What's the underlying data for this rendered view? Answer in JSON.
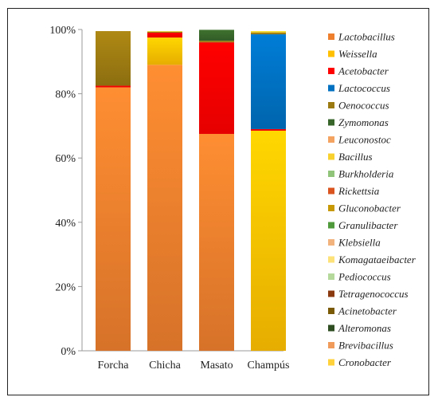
{
  "chart_data": {
    "type": "bar",
    "stacked": true,
    "categories": [
      "Forcha",
      "Chicha",
      "Masato",
      "Champús"
    ],
    "yticks": [
      "0%",
      "20%",
      "40%",
      "60%",
      "80%",
      "100%"
    ],
    "ylim": [
      0,
      100
    ],
    "grid": false,
    "legend_position": "right",
    "series": [
      {
        "name": "Lactobacillus",
        "color": "#ee7f2d",
        "values": [
          82,
          89,
          67.5,
          0
        ]
      },
      {
        "name": "Weissella",
        "color": "#ffc000",
        "values": [
          0,
          8.5,
          0,
          68.5
        ]
      },
      {
        "name": "Acetobacter",
        "color": "#ff0000",
        "values": [
          0.5,
          1.5,
          28.5,
          0.5
        ]
      },
      {
        "name": "Lactococcus",
        "color": "#0070c0",
        "values": [
          0,
          0,
          0,
          29.5
        ]
      },
      {
        "name": "Oenococcus",
        "color": "#9c7a12",
        "values": [
          17,
          0.3,
          0.5,
          0.5
        ]
      },
      {
        "name": "Zymomonas",
        "color": "#38662a",
        "values": [
          0,
          0,
          3.4,
          0
        ]
      },
      {
        "name": "Leuconostoc",
        "color": "#f4a460",
        "values": [
          0,
          0,
          0,
          0
        ]
      },
      {
        "name": "Bacillus",
        "color": "#f8d12e",
        "values": [
          0,
          0.2,
          0,
          0.5
        ]
      },
      {
        "name": "Burkholderia",
        "color": "#8fc47a",
        "values": [
          0,
          0,
          0,
          0
        ]
      },
      {
        "name": "Rickettsia",
        "color": "#d9541e",
        "values": [
          0,
          0,
          0,
          0
        ]
      },
      {
        "name": "Gluconobacter",
        "color": "#c79a05",
        "values": [
          0,
          0,
          0,
          0
        ]
      },
      {
        "name": "Granulibacter",
        "color": "#4f9a3a",
        "values": [
          0,
          0,
          0,
          0
        ]
      },
      {
        "name": "Klebsiella",
        "color": "#f2b47c",
        "values": [
          0,
          0,
          0,
          0
        ]
      },
      {
        "name": "Komagataeibacter",
        "color": "#fde27a",
        "values": [
          0,
          0,
          0,
          0
        ]
      },
      {
        "name": "Pediococcus",
        "color": "#b5d99b",
        "values": [
          0,
          0,
          0,
          0
        ]
      },
      {
        "name": "Tetragenococcus",
        "color": "#8b3a10",
        "values": [
          0,
          0,
          0,
          0
        ]
      },
      {
        "name": "Acinetobacter",
        "color": "#7a5a05",
        "values": [
          0,
          0,
          0,
          0
        ]
      },
      {
        "name": "Alteromonas",
        "color": "#2e4d21",
        "values": [
          0,
          0,
          0,
          0
        ]
      },
      {
        "name": "Brevibacillus",
        "color": "#f09a5c",
        "values": [
          0,
          0,
          0,
          0
        ]
      },
      {
        "name": "Cronobacter",
        "color": "#ffd23c",
        "values": [
          0,
          0,
          0,
          0
        ]
      }
    ]
  }
}
